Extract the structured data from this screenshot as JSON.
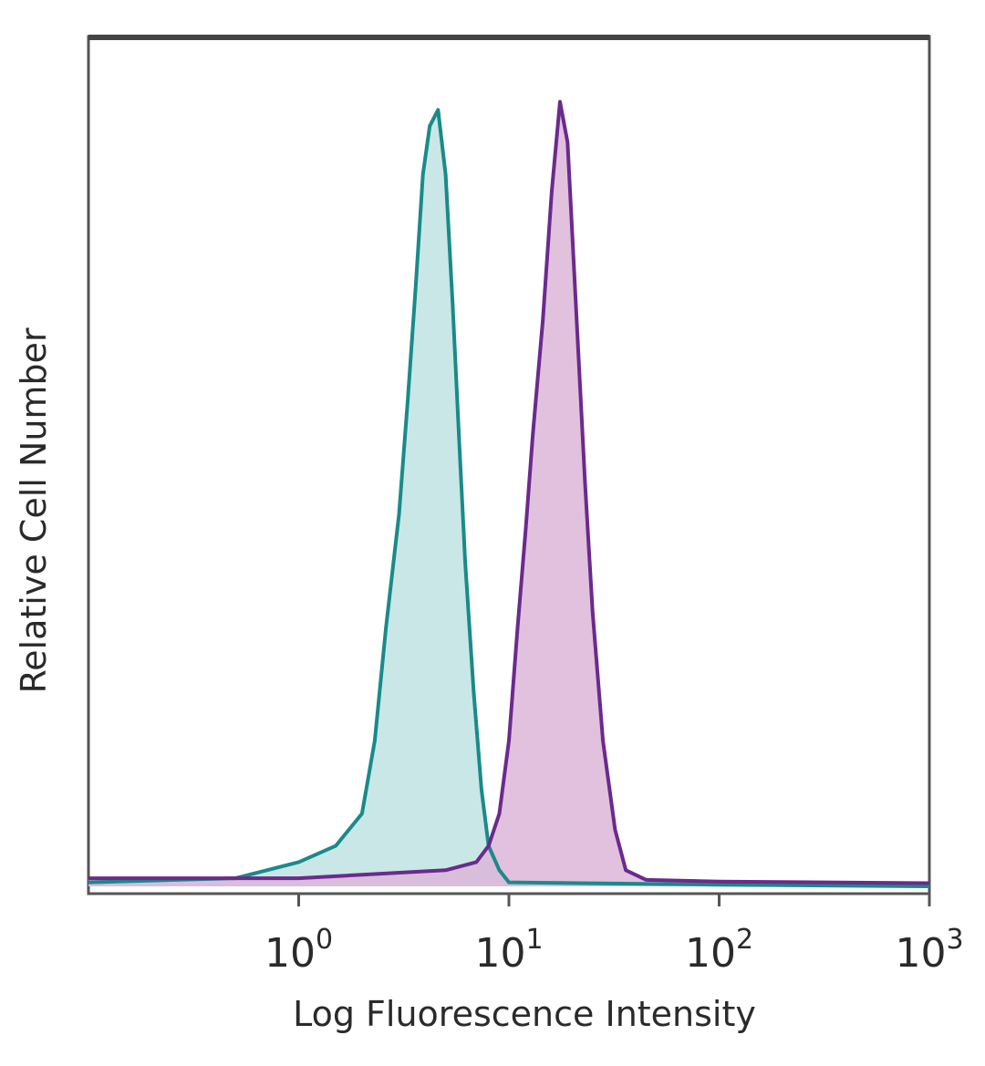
{
  "chart_data": {
    "type": "area",
    "title": "",
    "xlabel": "Log Fluorescence Intensity",
    "ylabel": "Relative Cell Number",
    "x_scale": "log",
    "xlim": [
      0.1,
      1000
    ],
    "ylim": [
      0,
      1
    ],
    "x_ticks": [
      {
        "value": 1,
        "base": "10",
        "exp": "0"
      },
      {
        "value": 10,
        "base": "10",
        "exp": "1"
      },
      {
        "value": 100,
        "base": "10",
        "exp": "2"
      },
      {
        "value": 1000,
        "base": "10",
        "exp": "3"
      }
    ],
    "grid": false,
    "legend": "none",
    "series": [
      {
        "color": "#1a8a8a",
        "fill": "#bfe3e3",
        "x": [
          0.1,
          0.5,
          1.0,
          1.5,
          2.0,
          2.3,
          2.6,
          3.0,
          3.3,
          3.6,
          3.9,
          4.2,
          4.6,
          5.0,
          5.4,
          5.8,
          6.2,
          6.8,
          7.4,
          8.0,
          9.0,
          10.0,
          100.0,
          1000.0
        ],
        "y": [
          0.005,
          0.01,
          0.03,
          0.05,
          0.09,
          0.18,
          0.32,
          0.46,
          0.6,
          0.74,
          0.88,
          0.94,
          0.96,
          0.88,
          0.72,
          0.55,
          0.4,
          0.24,
          0.12,
          0.05,
          0.02,
          0.005,
          0.002,
          0.0
        ]
      },
      {
        "color": "#6b2a8c",
        "fill": "#dcb6d8",
        "x": [
          0.1,
          1.0,
          5.0,
          7.0,
          8.0,
          9.0,
          10.0,
          11.0,
          12.0,
          13.0,
          14.5,
          16.0,
          17.5,
          19.0,
          21.0,
          23.0,
          25.0,
          28.0,
          32.0,
          36.0,
          45.0,
          100.0,
          1000.0
        ],
        "y": [
          0.01,
          0.01,
          0.02,
          0.03,
          0.05,
          0.09,
          0.18,
          0.32,
          0.44,
          0.56,
          0.7,
          0.86,
          0.97,
          0.92,
          0.7,
          0.5,
          0.34,
          0.18,
          0.07,
          0.02,
          0.008,
          0.006,
          0.004
        ]
      }
    ]
  }
}
